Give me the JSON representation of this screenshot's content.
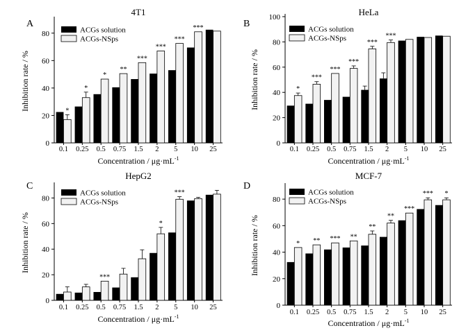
{
  "colors": {
    "solution": "#000000",
    "nsps": "#f2f2f2",
    "axis": "#000000"
  },
  "chart_data": [
    {
      "type": "bar",
      "panel": "A",
      "title": "4T1",
      "xlabel": "Concentration / μg·mL",
      "xlabel_sup": "-1",
      "ylabel": "Inhibition rate / %",
      "ylim": [
        0,
        90
      ],
      "yticks": [
        0,
        20,
        40,
        60,
        80
      ],
      "legend_position": "top-left",
      "categories": [
        "0.1",
        "0.25",
        "0.5",
        "0.75",
        "1.5",
        "2",
        "5",
        "10",
        "25"
      ],
      "series": [
        {
          "name": "ACGs solution",
          "values": [
            22.5,
            26.5,
            35.5,
            40.5,
            46.5,
            50.5,
            53,
            69.5,
            82.5
          ],
          "errors": [
            0,
            0,
            0,
            0,
            0,
            0,
            0,
            0,
            0
          ]
        },
        {
          "name": "ACGs-NSps",
          "values": [
            17,
            33,
            46.5,
            50.5,
            58.5,
            67,
            72.5,
            81,
            81.5
          ],
          "errors": [
            3.5,
            4,
            0,
            0,
            0,
            0,
            0,
            0,
            0
          ]
        }
      ],
      "significance": [
        "*",
        "*",
        "*",
        "**",
        "***",
        "***",
        "***",
        "***",
        ""
      ]
    },
    {
      "type": "bar",
      "panel": "B",
      "title": "HeLa",
      "xlabel": "Concentration / μg·mL",
      "xlabel_sup": "-1",
      "ylabel": "Inhibition rate / %",
      "ylim": [
        0,
        100
      ],
      "yticks": [
        0,
        20,
        40,
        60,
        80,
        100
      ],
      "legend_position": "top-left",
      "categories": [
        "0.1",
        "0.25",
        "0.5",
        "0.75",
        "1.5",
        "2",
        "5",
        "10",
        "25"
      ],
      "series": [
        {
          "name": "ACGs solution",
          "values": [
            29.5,
            31,
            34,
            36.5,
            42,
            51,
            81,
            84,
            85
          ],
          "errors": [
            0,
            0,
            0,
            0,
            3,
            4.5,
            0,
            0,
            0
          ]
        },
        {
          "name": "ACGs-NSps",
          "values": [
            37.5,
            46.5,
            55,
            59,
            74.5,
            79.5,
            82,
            83.5,
            84.5
          ],
          "errors": [
            2,
            2,
            0,
            2,
            2,
            2,
            0,
            0,
            0
          ]
        }
      ],
      "significance": [
        "*",
        "***",
        "***",
        "***",
        "***",
        "***",
        "",
        "",
        ""
      ]
    },
    {
      "type": "bar",
      "panel": "C",
      "title": "HepG2",
      "xlabel": "Concentration / μg·mL",
      "xlabel_sup": "-1",
      "ylabel": "Inhibition rate / %",
      "ylim": [
        0,
        90
      ],
      "yticks": [
        0,
        20,
        40,
        60,
        80
      ],
      "legend_position": "top-left",
      "categories": [
        "0.1",
        "0.25",
        "0.5",
        "0.75",
        "1.5",
        "2",
        "5",
        "10",
        "25"
      ],
      "series": [
        {
          "name": "ACGs solution",
          "values": [
            5,
            6,
            6.5,
            10,
            18,
            37,
            53,
            78,
            82.5
          ],
          "errors": [
            0,
            0,
            0,
            0,
            0,
            0,
            0,
            0,
            0
          ]
        },
        {
          "name": "ACGs-NSps",
          "values": [
            6.5,
            10.5,
            15,
            20.5,
            32.5,
            52,
            79,
            79.5,
            83
          ],
          "errors": [
            4,
            2,
            0,
            4.5,
            7,
            5,
            2,
            1,
            3
          ]
        }
      ],
      "significance": [
        "",
        "",
        "***",
        "",
        "",
        "*",
        "***",
        "",
        ""
      ]
    },
    {
      "type": "bar",
      "panel": "D",
      "title": "MCF-7",
      "xlabel": "Concentration / μg·mL",
      "xlabel_sup": "-1",
      "ylabel": "Inhibition rate / %",
      "ylim": [
        0,
        90
      ],
      "yticks": [
        0,
        20,
        40,
        60,
        80
      ],
      "legend_position": "top-left",
      "categories": [
        "0.1",
        "0.25",
        "0.5",
        "0.75",
        "1.5",
        "2",
        "5",
        "10",
        "25"
      ],
      "series": [
        {
          "name": "ACGs solution",
          "values": [
            32.5,
            39,
            42,
            43.5,
            45,
            51.5,
            64,
            72.5,
            75.5
          ],
          "errors": [
            0,
            0,
            0,
            0,
            0,
            0,
            0,
            0,
            0
          ]
        },
        {
          "name": "ACGs-NSps",
          "values": [
            43.5,
            45.5,
            47,
            48.5,
            53.5,
            62,
            69.5,
            79.5,
            79.5
          ],
          "errors": [
            0,
            0,
            0,
            0,
            2.5,
            2,
            0,
            1.5,
            1.5
          ]
        }
      ],
      "significance": [
        "*",
        "**",
        "***",
        "**",
        "**",
        "**",
        "***",
        "***",
        "*"
      ]
    }
  ]
}
